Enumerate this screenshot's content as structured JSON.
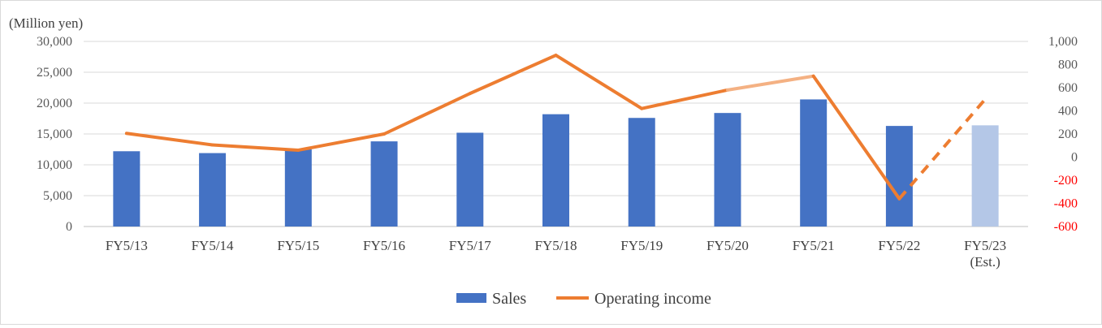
{
  "chart_data": {
    "type": "bar",
    "unit_label": "(Million yen)",
    "categories": [
      [
        "FY5/13"
      ],
      [
        "FY5/14"
      ],
      [
        "FY5/15"
      ],
      [
        "FY5/16"
      ],
      [
        "FY5/17"
      ],
      [
        "FY5/18"
      ],
      [
        "FY5/19"
      ],
      [
        "FY5/20"
      ],
      [
        "FY5/21"
      ],
      [
        "FY5/22"
      ],
      [
        "FY5/23",
        "(Est.)"
      ]
    ],
    "left_axis": {
      "ticks": [
        0,
        5000,
        10000,
        15000,
        20000,
        25000,
        30000
      ],
      "tick_labels": [
        "0",
        "5,000",
        "10,000",
        "15,000",
        "20,000",
        "25,000",
        "30,000"
      ],
      "ylim": [
        0,
        30000
      ]
    },
    "right_axis": {
      "ticks": [
        -600,
        -400,
        -200,
        0,
        200,
        400,
        600,
        800,
        1000
      ],
      "tick_labels": [
        "-600",
        "-400",
        "-200",
        "0",
        "200",
        "400",
        "600",
        "800",
        "1,000"
      ],
      "ylim": [
        -600,
        1000
      ],
      "negative_color": "#ff0000",
      "positive_color": "#595959"
    },
    "series": [
      {
        "name": "Sales",
        "type": "bar",
        "axis": "left",
        "color": "#4472c4",
        "estimate_color": "#b4c7e7",
        "values": [
          12200,
          11900,
          12500,
          13800,
          15200,
          18200,
          17600,
          18400,
          20600,
          16300,
          16400
        ],
        "estimate_from_index": 10
      },
      {
        "name": "Operating income",
        "type": "line",
        "axis": "right",
        "color": "#ed7d31",
        "light_color": "#f4b183",
        "values": [
          205,
          105,
          60,
          200,
          550,
          880,
          420,
          580,
          700,
          -360,
          500
        ],
        "light_segments": [
          [
            7,
            8
          ]
        ],
        "dashed_from_index": 9
      }
    ],
    "legend": {
      "position": "bottom-center",
      "items": [
        "Sales",
        "Operating income"
      ]
    },
    "grid": true
  }
}
